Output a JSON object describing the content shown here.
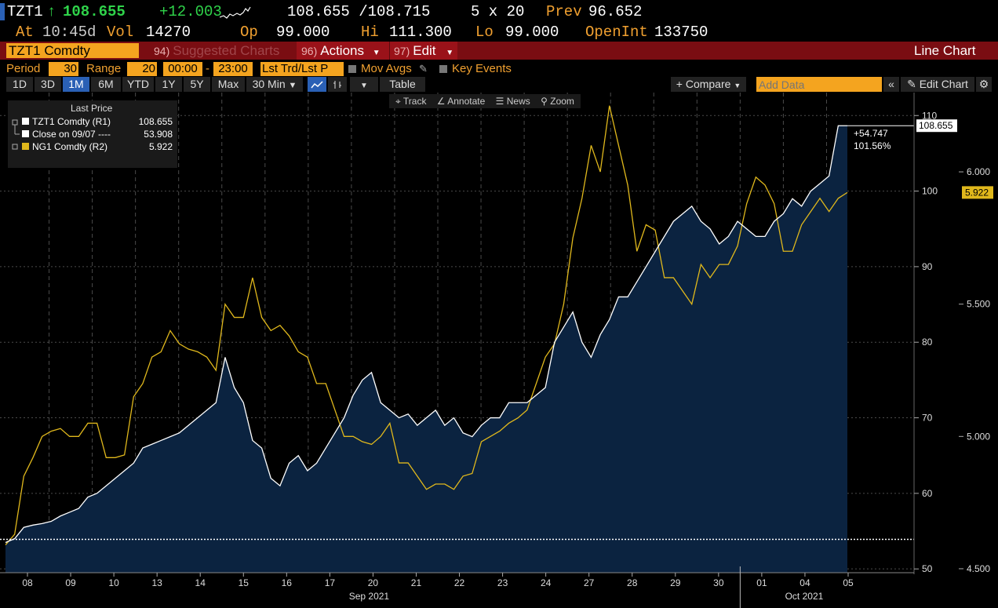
{
  "quote": {
    "ticker": "TZT1",
    "arrow": "↑",
    "last": "108.655",
    "change": "+12.003",
    "bid_ask": "108.655 /108.715",
    "size": "5 x 20",
    "prev_label": "Prev",
    "prev": "96.652",
    "at_label": "At",
    "time": "10:45d",
    "vol_label": "Vol",
    "vol": "14270",
    "op_label": "Op",
    "op": "99.000",
    "hi_label": "Hi",
    "hi": "111.300",
    "lo_label": "Lo",
    "lo": "99.000",
    "oi_label": "OpenInt",
    "oi": "133750"
  },
  "toolbar": {
    "security": "TZT1 Comdty",
    "suggested_num": "94)",
    "suggested": "Suggested Charts",
    "actions_num": "96)",
    "actions": "Actions",
    "edit_num": "97)",
    "edit": "Edit",
    "chart_type": "Line Chart",
    "period_label": "Period",
    "period": "30",
    "range_label": "Range",
    "range": "20",
    "start_time": "00:00",
    "end_time": "23:00",
    "price_field": "Lst Trd/Lst P",
    "mov_avgs": "Mov Avgs",
    "key_events": "Key Events",
    "ranges": [
      "1D",
      "3D",
      "1M",
      "6M",
      "YTD",
      "1Y",
      "5Y",
      "Max"
    ],
    "interval": "30 Min",
    "table": "Table",
    "compare": "+ Compare",
    "add_data_placeholder": "Add Data",
    "edit_chart": "Edit Chart"
  },
  "tools": {
    "track": "Track",
    "annotate": "Annotate",
    "news": "News",
    "zoom": "Zoom"
  },
  "legend": {
    "title": "Last Price",
    "rows": [
      {
        "name": "TZT1 Comdty  (R1)",
        "value": "108.655"
      },
      {
        "name": "Close on 09/07 ----",
        "value": "53.908"
      },
      {
        "name": "NG1 Comdty  (R2)",
        "value": "5.922"
      }
    ]
  },
  "chart_data": {
    "type": "line",
    "x_ticks": [
      "08",
      "09",
      "10",
      "13",
      "14",
      "15",
      "16",
      "17",
      "20",
      "21",
      "22",
      "23",
      "24",
      "27",
      "28",
      "29",
      "30",
      "01",
      "04",
      "05"
    ],
    "x_month_labels": [
      "Sep 2021",
      "Oct 2021"
    ],
    "r1_ticks": [
      "50",
      "60",
      "70",
      "80",
      "90",
      "100",
      "110"
    ],
    "r1_range": [
      49.5,
      112
    ],
    "r2_ticks": [
      "4.500",
      "5.000",
      "5.500",
      "6.000"
    ],
    "r2_range": [
      4.485,
      6.27
    ],
    "reference_close": 53.908,
    "last_label": "108.655",
    "ng_last_label": "5.922",
    "change_abs": "+54.747",
    "change_pct": "101.56%",
    "series": [
      {
        "name": "TZT1 Comdty",
        "axis": "R1",
        "color": "#ffffff",
        "area_color": "#0b2340",
        "values": [
          53.5,
          54,
          55.5,
          55.8,
          56,
          56.3,
          57,
          57.5,
          58,
          59.5,
          60,
          61,
          62,
          63,
          64,
          66,
          66.5,
          67,
          67.5,
          68,
          69,
          70,
          71,
          72,
          78,
          74,
          72,
          67,
          66,
          62,
          61,
          64,
          65,
          63,
          64,
          66,
          68,
          70,
          73,
          75,
          76,
          72,
          71,
          70,
          70.5,
          69,
          70,
          71,
          69,
          70,
          68,
          67.5,
          69,
          70,
          70,
          72,
          72,
          72,
          73,
          74,
          80,
          82,
          84,
          80,
          78,
          81,
          83,
          86,
          86,
          88,
          90,
          92,
          94,
          96,
          97,
          98,
          96,
          95,
          93,
          94,
          96,
          95,
          94,
          94,
          96,
          97,
          99,
          98,
          100,
          101,
          102,
          108.655,
          108.655
        ]
      },
      {
        "name": "NG1 Comdty",
        "axis": "R2",
        "color": "#e0b81c",
        "values": [
          4.59,
          4.63,
          4.85,
          4.92,
          5.0,
          5.02,
          5.03,
          5.0,
          5.0,
          5.05,
          5.05,
          4.92,
          4.92,
          4.93,
          5.15,
          5.2,
          5.3,
          5.32,
          5.4,
          5.35,
          5.33,
          5.32,
          5.3,
          5.25,
          5.5,
          5.45,
          5.45,
          5.6,
          5.45,
          5.4,
          5.42,
          5.38,
          5.32,
          5.3,
          5.2,
          5.2,
          5.1,
          5.0,
          5.0,
          4.98,
          4.97,
          5.0,
          5.05,
          4.9,
          4.9,
          4.85,
          4.8,
          4.82,
          4.82,
          4.8,
          4.85,
          4.86,
          4.98,
          5.0,
          5.02,
          5.05,
          5.07,
          5.1,
          5.2,
          5.3,
          5.35,
          5.5,
          5.75,
          5.9,
          6.1,
          6.0,
          6.25,
          6.1,
          5.95,
          5.7,
          5.8,
          5.78,
          5.6,
          5.6,
          5.55,
          5.5,
          5.65,
          5.6,
          5.65,
          5.65,
          5.72,
          5.88,
          5.98,
          5.95,
          5.88,
          5.7,
          5.7,
          5.8,
          5.85,
          5.9,
          5.85,
          5.9,
          5.922
        ]
      }
    ]
  }
}
